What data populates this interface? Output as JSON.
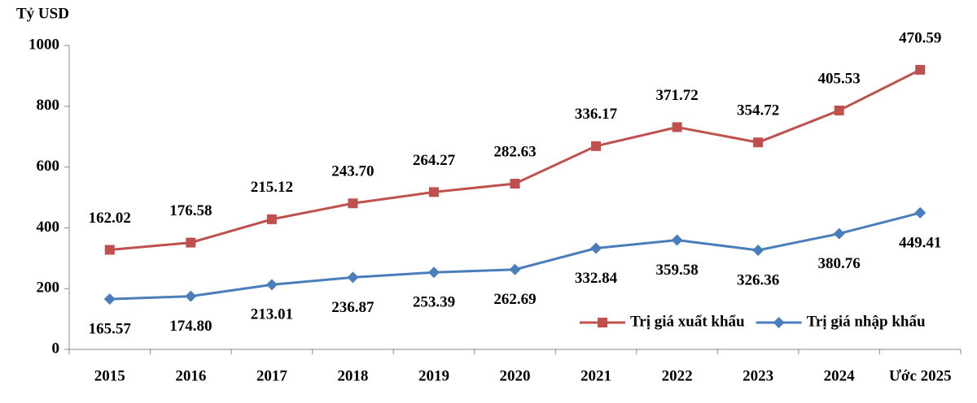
{
  "chart_data": {
    "type": "stacked-line",
    "y_label": "Tỷ USD",
    "categories": [
      "2015",
      "2016",
      "2017",
      "2018",
      "2019",
      "2020",
      "2021",
      "2022",
      "2023",
      "2024",
      "Ước 2025"
    ],
    "series": [
      {
        "name": "Trị giá nhập khẩu",
        "color": "#4a7ebb",
        "marker": "diamond",
        "values": [
          165.57,
          174.8,
          213.01,
          236.87,
          253.39,
          262.69,
          332.84,
          359.58,
          326.36,
          380.76,
          449.41
        ],
        "value_labels": [
          "165.57",
          "174.80",
          "213.01",
          "236.87",
          "253.39",
          "262.69",
          "332.84",
          "359.58",
          "326.36",
          "380.76",
          "449.41"
        ]
      },
      {
        "name": "Trị giá xuất khẩu",
        "color": "#c0504d",
        "marker": "square",
        "values": [
          162.02,
          176.58,
          215.12,
          243.7,
          264.27,
          282.63,
          336.17,
          371.72,
          354.72,
          405.53,
          470.59
        ],
        "value_labels": [
          "162.02",
          "176.58",
          "215.12",
          "243.70",
          "264.27",
          "282.63",
          "336.17",
          "371.72",
          "354.72",
          "405.53",
          "470.59"
        ]
      }
    ],
    "ylim": [
      0,
      1000
    ],
    "yticks": [
      0,
      200,
      400,
      600,
      800,
      1000
    ],
    "legend": "lower-right"
  }
}
